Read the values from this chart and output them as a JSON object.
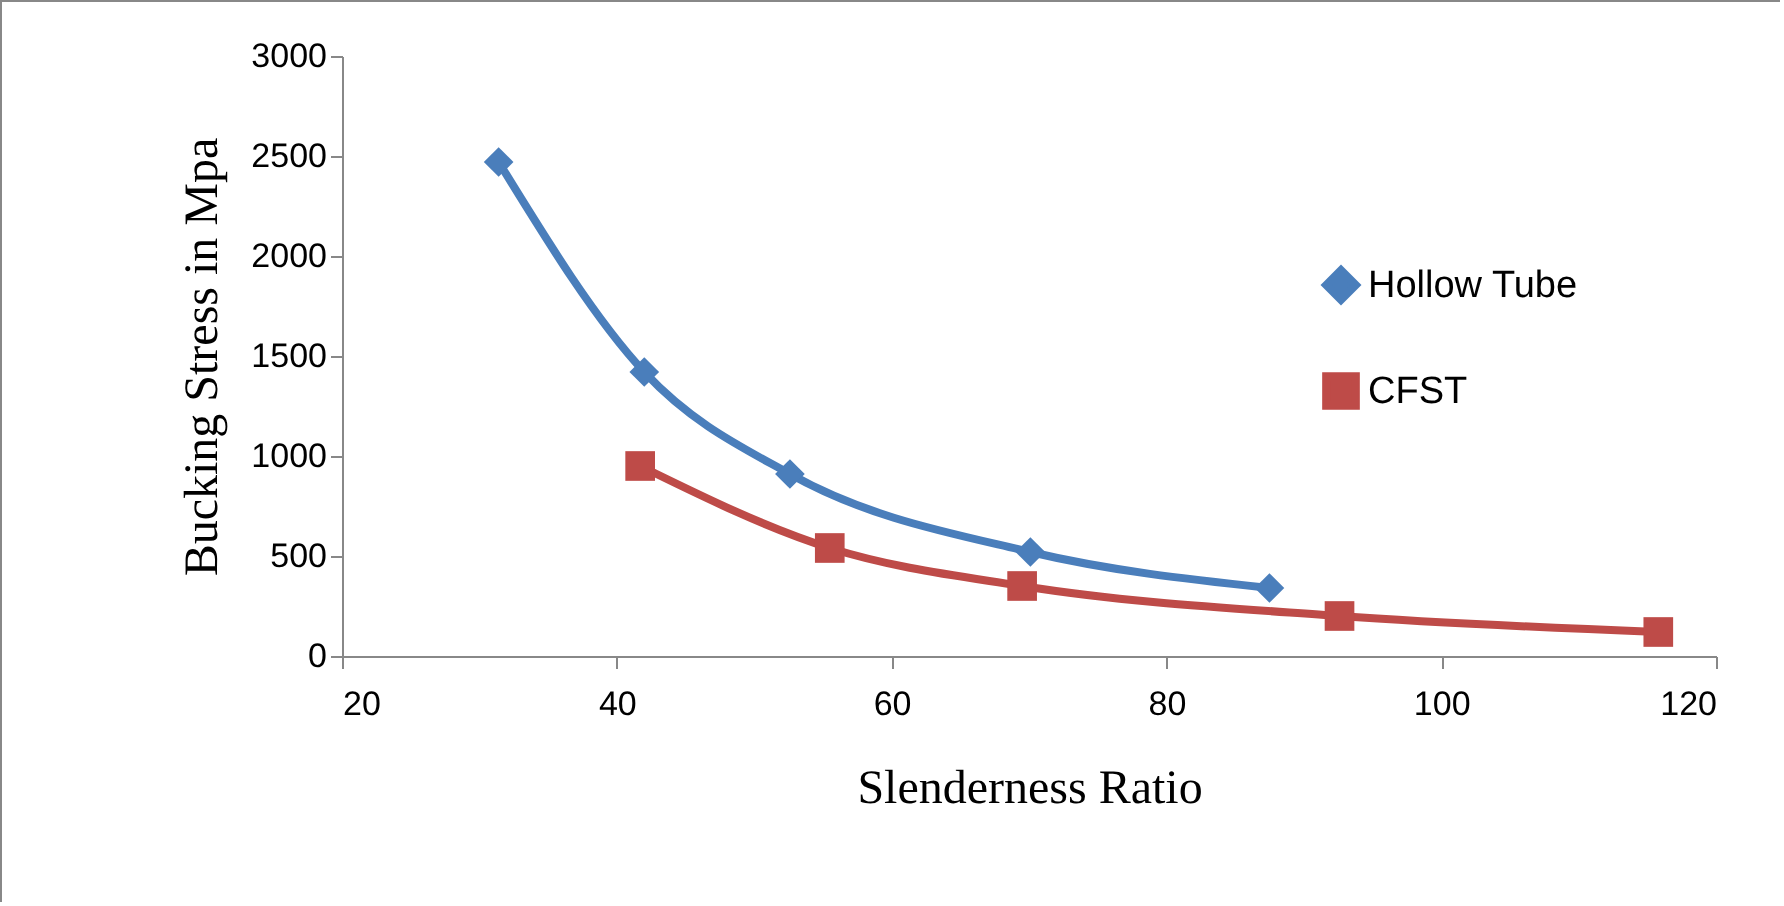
{
  "chart_data": {
    "type": "line",
    "xlabel": "Slenderness Ratio",
    "ylabel": "Bucking Stress in Mpa",
    "xlim": [
      20,
      120
    ],
    "xticks": [
      20,
      40,
      60,
      80,
      100,
      120
    ],
    "ylim": [
      0,
      3000
    ],
    "yticks": [
      0,
      500,
      1000,
      1500,
      2000,
      2500,
      3000
    ],
    "grid": false,
    "legend": "right",
    "line_style": "solid",
    "series": [
      {
        "name": "Hollow Tube",
        "color": "#4a7ebb",
        "marker": "diamond",
        "x": [
          31.4,
          42.0,
          52.6,
          70.1,
          87.5
        ],
        "values": [
          2470,
          1420,
          910,
          520,
          340
        ]
      },
      {
        "name": "CFST",
        "color": "#be4b48",
        "marker": "square",
        "x": [
          41.7,
          55.5,
          69.5,
          92.6,
          115.8
        ],
        "values": [
          950,
          540,
          350,
          200,
          120
        ]
      }
    ]
  }
}
